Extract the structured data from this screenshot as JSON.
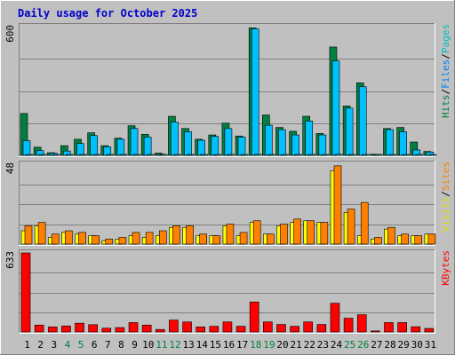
{
  "chart_data": {
    "type": "bar",
    "title": "Daily usage for October 2025",
    "days": [
      "1",
      "2",
      "3",
      "4",
      "5",
      "6",
      "7",
      "8",
      "9",
      "10",
      "11",
      "12",
      "13",
      "14",
      "15",
      "16",
      "17",
      "18",
      "19",
      "20",
      "21",
      "22",
      "23",
      "24",
      "25",
      "26",
      "27",
      "28",
      "29",
      "30",
      "31"
    ],
    "weekend_days": [
      "4",
      "5",
      "11",
      "12",
      "18",
      "19",
      "25",
      "26"
    ],
    "colors": {
      "background": "#c0c0c0",
      "title": "#0000cc",
      "hits": "#008040",
      "files": "#00c0ff",
      "pages": "#00e0e0",
      "visits": "#ffff00",
      "sites": "#ff8000",
      "kbytes": "#ff0000",
      "weekday_label": "#000000",
      "weekend_label": "#008040"
    },
    "panels": [
      {
        "scale_label": "600",
        "max": 600,
        "legend": [
          {
            "text": "Hits",
            "color": "#008040"
          },
          {
            "text": "/",
            "color": "#000000"
          },
          {
            "text": "Files",
            "color": "#0080ff"
          },
          {
            "text": "/",
            "color": "#000000"
          },
          {
            "text": "Pages",
            "color": "#00c0c0"
          }
        ],
        "series": [
          {
            "name": "Hits",
            "color": "#008040",
            "values": [
              195,
              38,
              12,
              45,
              75,
              105,
              45,
              80,
              138,
              98,
              10,
              182,
              125,
              75,
              95,
              150,
              90,
              594,
              188,
              130,
              112,
              182,
              102,
              505,
              230,
              338,
              5,
              125,
              130,
              62,
              18
            ]
          },
          {
            "name": "Files",
            "color": "#00c0ff",
            "values": [
              68,
              22,
              10,
              20,
              55,
              92,
              40,
              75,
              125,
              85,
              5,
              155,
              110,
              70,
              88,
              125,
              85,
              590,
              140,
              120,
              95,
              160,
              95,
              440,
              220,
              320,
              3,
              120,
              110,
              25,
              15
            ]
          },
          {
            "name": "Pages",
            "color": "#00e0e0",
            "values": [
              3,
              2,
              2,
              2,
              2,
              3,
              2,
              2,
              3,
              2,
              1,
              3,
              2,
              2,
              2,
              3,
              2,
              5,
              3,
              2,
              2,
              3,
              2,
              5,
              3,
              3,
              1,
              3,
              3,
              2,
              1
            ]
          }
        ]
      },
      {
        "scale_label": "48",
        "max": 48,
        "legend": [
          {
            "text": "Visits",
            "color": "#e0e000"
          },
          {
            "text": "/",
            "color": "#000000"
          },
          {
            "text": "Sites",
            "color": "#ff8000"
          }
        ],
        "series": [
          {
            "name": "Visits",
            "color": "#ffff00",
            "values": [
              8,
              11,
              4,
              7,
              6,
              5,
              2,
              3,
              5,
              4,
              5,
              10,
              10,
              5,
              5,
              11,
              5,
              13,
              6,
              11,
              13,
              14,
              13,
              44,
              19,
              5,
              3,
              9,
              5,
              5,
              6
            ]
          },
          {
            "name": "Sites",
            "color": "#ff8000",
            "values": [
              11,
              13,
              6,
              8,
              7,
              5,
              3,
              4,
              7,
              7,
              8,
              11,
              11,
              6,
              5,
              12,
              7,
              14,
              6,
              12,
              15,
              14,
              13,
              47,
              21,
              25,
              4,
              10,
              6,
              5,
              6
            ]
          }
        ]
      },
      {
        "scale_label": "633",
        "max": 633,
        "legend": [
          {
            "text": "KBytes",
            "color": "#ff0000"
          }
        ],
        "series": [
          {
            "name": "KBytes",
            "color": "#ff0000",
            "values": [
              633,
              55,
              40,
              48,
              70,
              58,
              30,
              35,
              75,
              55,
              20,
              95,
              80,
              40,
              45,
              80,
              45,
              240,
              80,
              60,
              45,
              80,
              60,
              230,
              110,
              138,
              8,
              75,
              75,
              42,
              28
            ]
          }
        ]
      }
    ]
  }
}
